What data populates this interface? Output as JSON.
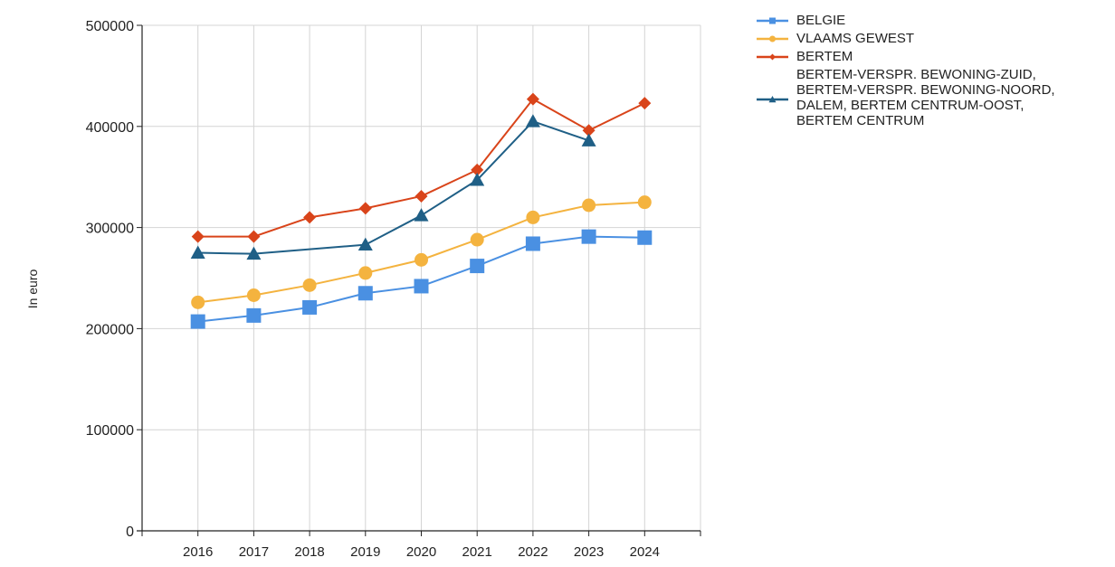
{
  "chart_data": {
    "type": "line",
    "ylabel": "In euro",
    "xlabel": "",
    "ylim": [
      0,
      500000
    ],
    "yticks": [
      0,
      100000,
      200000,
      300000,
      400000,
      500000
    ],
    "ytick_labels": [
      "0",
      "100000",
      "200000",
      "300000",
      "400000",
      "500000"
    ],
    "x_range": [
      2015,
      2025
    ],
    "categories": [
      "2016",
      "2017",
      "2018",
      "2019",
      "2020",
      "2021",
      "2022",
      "2023",
      "2024"
    ],
    "grid": true,
    "legend_position": "top-right",
    "series": [
      {
        "name": "BELGIE",
        "legend_lines": [
          "BELGIE"
        ],
        "color": "#4a90e2",
        "marker": "square",
        "values": [
          207000,
          213000,
          221000,
          235000,
          242000,
          262000,
          284000,
          291000,
          290000
        ]
      },
      {
        "name": "VLAAMS GEWEST",
        "legend_lines": [
          "VLAAMS GEWEST"
        ],
        "color": "#f4b33f",
        "marker": "circle",
        "values": [
          226000,
          233000,
          243000,
          255000,
          268000,
          288000,
          310000,
          322000,
          325000
        ]
      },
      {
        "name": "BERTEM",
        "legend_lines": [
          "BERTEM"
        ],
        "color": "#d9441a",
        "marker": "diamond",
        "values": [
          291000,
          291000,
          310000,
          319000,
          331000,
          357000,
          427000,
          396000,
          423000
        ]
      },
      {
        "name": "BERTEM-VERSPR. BEWONING-ZUID, BERTEM-VERSPR. BEWONING-NOORD, DALEM, BERTEM CENTRUM-OOST, BERTEM CENTRUM",
        "legend_lines": [
          "BERTEM-VERSPR. BEWONING-ZUID,",
          "BERTEM-VERSPR. BEWONING-NOORD,",
          "DALEM, BERTEM CENTRUM-OOST,",
          "BERTEM CENTRUM"
        ],
        "color": "#1f5f86",
        "marker": "triangle",
        "values": [
          275000,
          274000,
          null,
          283000,
          312000,
          347000,
          405000,
          386000,
          null
        ]
      }
    ]
  }
}
